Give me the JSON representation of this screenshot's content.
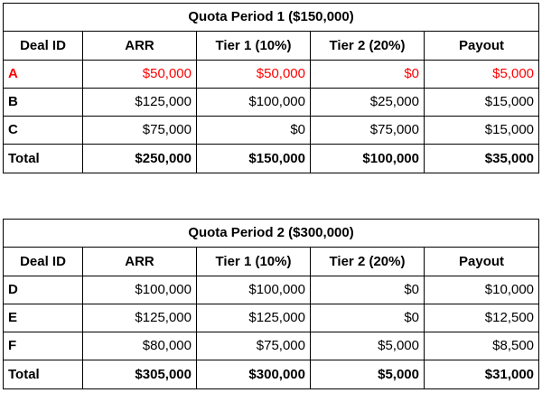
{
  "columns": [
    "Deal ID",
    "ARR",
    "Tier 1 (10%)",
    "Tier 2 (20%)",
    "Payout"
  ],
  "colors": {
    "highlight": "#ff0000",
    "text": "#000000",
    "border": "#000000"
  },
  "periods": [
    {
      "title": "Quota Period 1 ($150,000)",
      "rows": [
        {
          "deal_id": "A",
          "arr": "$50,000",
          "tier1": "$50,000",
          "tier2": "$0",
          "payout": "$5,000",
          "highlight": true
        },
        {
          "deal_id": "B",
          "arr": "$125,000",
          "tier1": "$100,000",
          "tier2": "$25,000",
          "payout": "$15,000",
          "highlight": false
        },
        {
          "deal_id": "C",
          "arr": "$75,000",
          "tier1": "$0",
          "tier2": "$75,000",
          "payout": "$15,000",
          "highlight": false
        }
      ],
      "total": {
        "label": "Total",
        "arr": "$250,000",
        "tier1": "$150,000",
        "tier2": "$100,000",
        "payout": "$35,000"
      }
    },
    {
      "title": "Quota Period 2 ($300,000)",
      "rows": [
        {
          "deal_id": "D",
          "arr": "$100,000",
          "tier1": "$100,000",
          "tier2": "$0",
          "payout": "$10,000",
          "highlight": false
        },
        {
          "deal_id": "E",
          "arr": "$125,000",
          "tier1": "$125,000",
          "tier2": "$0",
          "payout": "$12,500",
          "highlight": false
        },
        {
          "deal_id": "F",
          "arr": "$80,000",
          "tier1": "$75,000",
          "tier2": "$5,000",
          "payout": "$8,500",
          "highlight": false
        }
      ],
      "total": {
        "label": "Total",
        "arr": "$305,000",
        "tier1": "$300,000",
        "tier2": "$5,000",
        "payout": "$31,000"
      }
    }
  ]
}
